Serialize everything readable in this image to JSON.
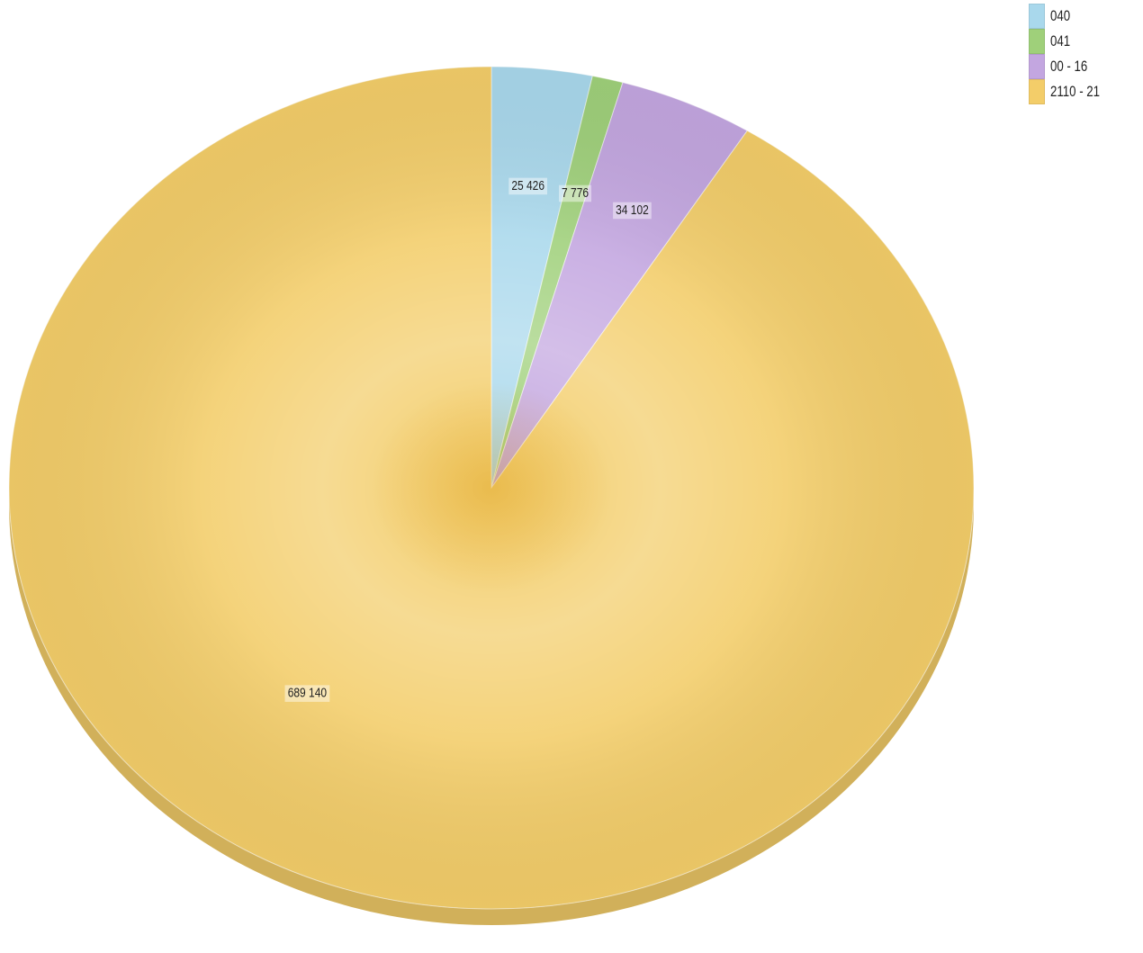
{
  "chart_data": {
    "type": "pie",
    "title": "",
    "start_angle_deg": 0,
    "direction": "clockwise",
    "legend_position": "top-right",
    "slices": [
      {
        "label": "040",
        "value": 25426,
        "value_label": "25 426",
        "color": "#a9d8ec"
      },
      {
        "label": "041",
        "value": 7776,
        "value_label": "7 776",
        "color": "#9fd07a"
      },
      {
        "label": "00 - 16",
        "value": 34102,
        "value_label": "34 102",
        "color": "#c3a6e0"
      },
      {
        "label": "2110 - 21",
        "value": 689140,
        "value_label": "689 140",
        "color": "#f3cd69"
      }
    ]
  },
  "legend": {
    "items": [
      {
        "label": "040",
        "color": "#a9d8ec"
      },
      {
        "label": "041",
        "color": "#9fd07a"
      },
      {
        "label": "00 - 16",
        "color": "#c3a6e0"
      },
      {
        "label": "2110 - 21",
        "color": "#f3cd69"
      }
    ]
  }
}
